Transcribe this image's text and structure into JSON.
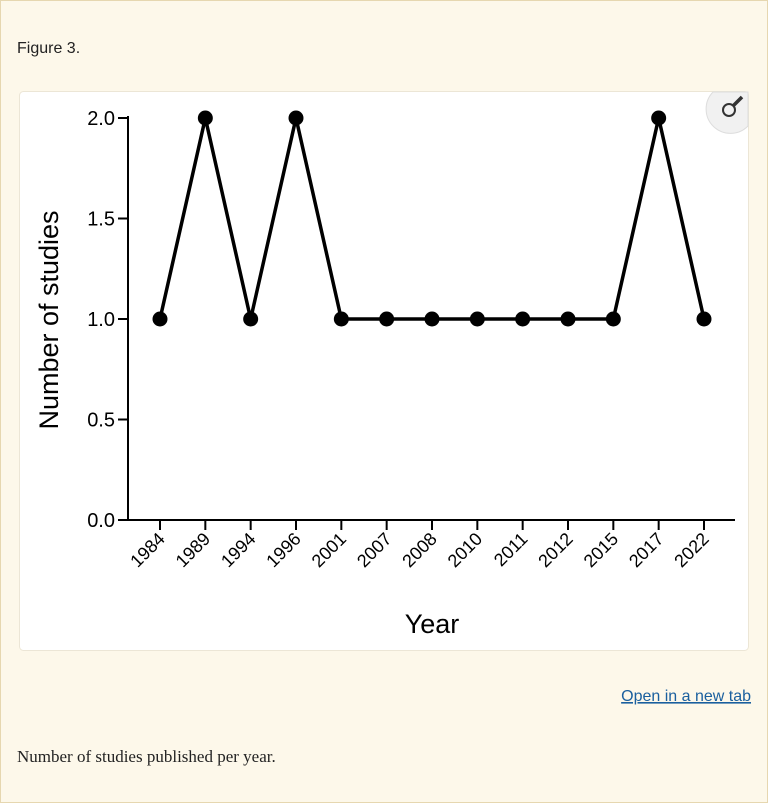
{
  "figure_label": "Figure 3.",
  "chart_data": {
    "type": "line",
    "x_label": "Year",
    "y_label": "Number of studies",
    "categories": [
      "1984",
      "1989",
      "1994",
      "1996",
      "2001",
      "2007",
      "2008",
      "2010",
      "2011",
      "2012",
      "2015",
      "2017",
      "2022"
    ],
    "values": [
      1,
      2,
      1,
      2,
      1,
      1,
      1,
      1,
      1,
      1,
      1,
      2,
      1
    ],
    "color": "#000000",
    "ylim": [
      0,
      2
    ],
    "yticks": [
      {
        "value": 0,
        "label": "0.0"
      },
      {
        "value": 0.5,
        "label": "0.5"
      },
      {
        "value": 1,
        "label": "1.0"
      },
      {
        "value": 1.5,
        "label": "1.5"
      },
      {
        "value": 2,
        "label": "2.0"
      }
    ],
    "grid": false
  },
  "link": "Open in a new tab",
  "caption": "Number of studies published per year."
}
